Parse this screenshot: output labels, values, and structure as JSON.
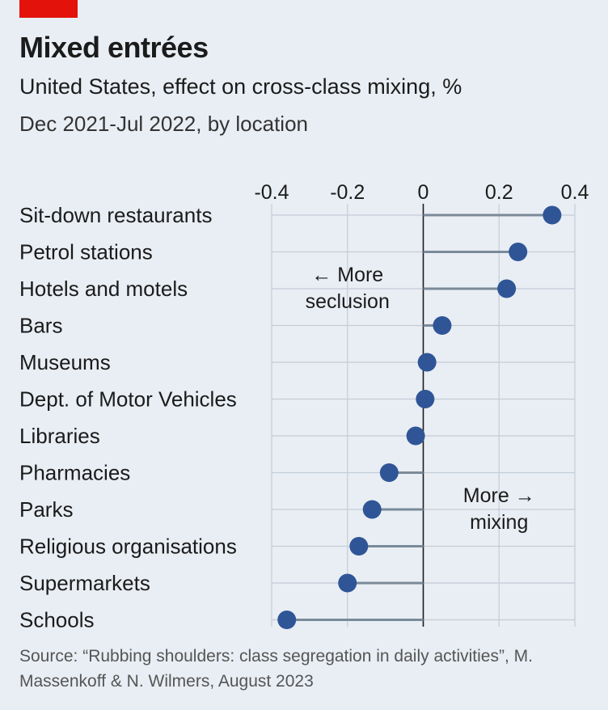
{
  "header": {
    "title": "Mixed entrées",
    "subtitle": "United States, effect on cross-class mixing, %",
    "period": "Dec 2021-Jul 2022, by location"
  },
  "source": "Source: “Rubbing shoulders: class segregation in daily activities”, M. Massenkoff & N. Wilmers, August 2023",
  "colors": {
    "background": "#e9eef4",
    "accent": "#e3120b",
    "dot": "#2f5597",
    "stem": "#7a8a99",
    "grid": "#c4ccd6",
    "zero": "#1b1b1b"
  },
  "chart_data": {
    "type": "scatter",
    "style": "lollipop",
    "orientation": "horizontal",
    "xlim": [
      -0.4,
      0.4
    ],
    "xticks": [
      -0.4,
      -0.2,
      0,
      0.2,
      0.4
    ],
    "xtick_labels": [
      "-0.4",
      "-0.2",
      "0",
      "0.2",
      "0.4"
    ],
    "grid": true,
    "categories": [
      "Sit-down restaurants",
      "Petrol stations",
      "Hotels and motels",
      "Bars",
      "Museums",
      "Dept. of Motor Vehicles",
      "Libraries",
      "Pharmacies",
      "Parks",
      "Religious organisations",
      "Supermarkets",
      "Schools"
    ],
    "values": [
      0.34,
      0.25,
      0.22,
      0.05,
      0.01,
      0.005,
      -0.02,
      -0.09,
      -0.135,
      -0.17,
      -0.2,
      -0.36
    ],
    "annotations": [
      {
        "id": "seclusion",
        "lines": [
          "← More",
          "seclusion"
        ],
        "x": -0.2,
        "row": 1.8
      },
      {
        "id": "mixing",
        "lines": [
          "More →",
          "mixing"
        ],
        "x": 0.2,
        "row": 7.8
      }
    ]
  }
}
